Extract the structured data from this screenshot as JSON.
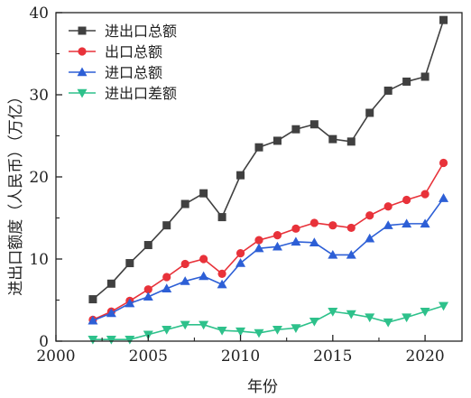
{
  "chart_data": {
    "type": "line",
    "xlabel": "年份",
    "ylabel": "进出口额度（人民币）（万亿）",
    "xlim": [
      2000,
      2022
    ],
    "ylim": [
      0,
      40
    ],
    "xticks": [
      2000,
      2005,
      2010,
      2015,
      2020
    ],
    "yticks": [
      0,
      10,
      20,
      30,
      40
    ],
    "legend_position": "top-left",
    "x": [
      2002,
      2003,
      2004,
      2005,
      2006,
      2007,
      2008,
      2009,
      2010,
      2011,
      2012,
      2013,
      2014,
      2015,
      2016,
      2017,
      2018,
      2019,
      2020,
      2021
    ],
    "series": [
      {
        "name": "进出口总额",
        "color": "#404040",
        "marker": "square",
        "values": [
          5.1,
          7.0,
          9.5,
          11.7,
          14.1,
          16.7,
          18.0,
          15.1,
          20.2,
          23.6,
          24.4,
          25.8,
          26.4,
          24.6,
          24.3,
          27.8,
          30.5,
          31.6,
          32.2,
          39.1
        ]
      },
      {
        "name": "出口总额",
        "color": "#e8323a",
        "marker": "circle",
        "values": [
          2.6,
          3.6,
          4.9,
          6.3,
          7.8,
          9.4,
          10.0,
          8.2,
          10.7,
          12.3,
          12.9,
          13.7,
          14.4,
          14.1,
          13.8,
          15.3,
          16.4,
          17.2,
          17.9,
          21.7
        ]
      },
      {
        "name": "进口总额",
        "color": "#2d5fd6",
        "marker": "triangle-up",
        "values": [
          2.5,
          3.4,
          4.6,
          5.4,
          6.4,
          7.3,
          7.9,
          6.9,
          9.5,
          11.3,
          11.5,
          12.1,
          12.0,
          10.5,
          10.5,
          12.5,
          14.1,
          14.3,
          14.3,
          17.4
        ]
      },
      {
        "name": "进出口差额",
        "color": "#2ec18b",
        "marker": "triangle-down",
        "values": [
          0.2,
          0.2,
          0.2,
          0.8,
          1.4,
          2.0,
          2.0,
          1.3,
          1.2,
          1.0,
          1.4,
          1.6,
          2.4,
          3.6,
          3.3,
          2.9,
          2.3,
          2.9,
          3.6,
          4.3
        ]
      }
    ]
  }
}
